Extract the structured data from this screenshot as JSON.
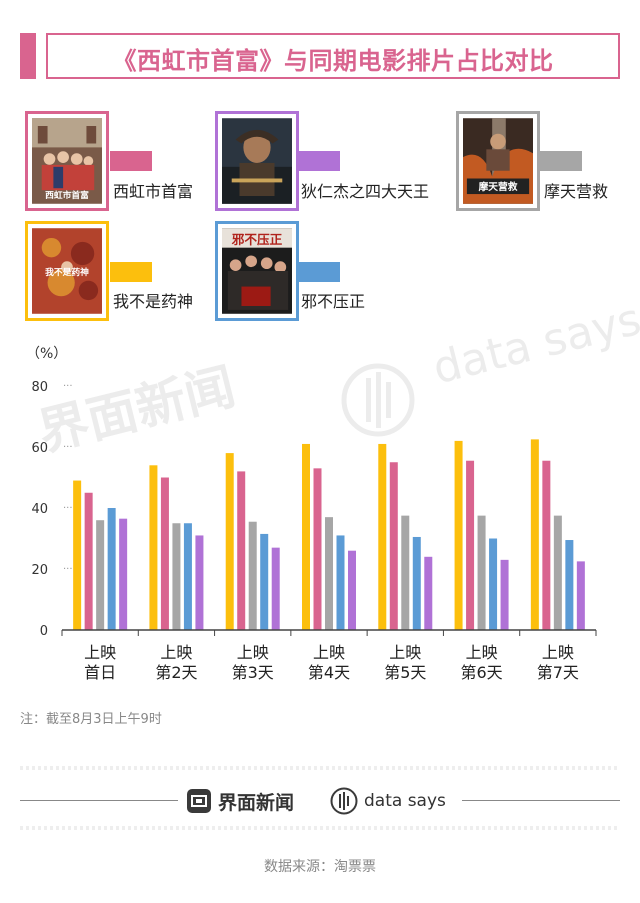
{
  "title": "《西虹市首富》与同期电影排片占比对比",
  "legend": [
    {
      "name": "西虹市首富",
      "color": "#d9648f",
      "poster_label": "西虹市首富"
    },
    {
      "name": "狄仁杰之四大天王",
      "color": "#b072d6",
      "poster_label": ""
    },
    {
      "name": "摩天营救",
      "color": "#a6a6a6",
      "poster_label": "摩天营救"
    },
    {
      "name": "我不是药神",
      "color": "#fcbf0d",
      "poster_label": "我不是药神"
    },
    {
      "name": "邪不压正",
      "color": "#5b9bd5",
      "poster_label": "邪不压正"
    }
  ],
  "chart_data": {
    "type": "bar",
    "ylabel": "（%）",
    "ylim": [
      0,
      80
    ],
    "yticks": [
      0,
      20,
      40,
      60,
      80
    ],
    "categories": [
      [
        "上映",
        "首日"
      ],
      [
        "上映",
        "第2天"
      ],
      [
        "上映",
        "第3天"
      ],
      [
        "上映",
        "第4天"
      ],
      [
        "上映",
        "第5天"
      ],
      [
        "上映",
        "第6天"
      ],
      [
        "上映",
        "第7天"
      ]
    ],
    "series": [
      {
        "name": "我不是药神",
        "color": "#fcbf0d",
        "values": [
          49,
          54,
          58,
          61,
          61,
          62,
          62.5
        ]
      },
      {
        "name": "西虹市首富",
        "color": "#d9648f",
        "values": [
          45,
          50,
          52,
          53,
          55,
          55.5,
          55.5
        ]
      },
      {
        "name": "摩天营救",
        "color": "#a6a6a6",
        "values": [
          36,
          35,
          35.5,
          37,
          37.5,
          37.5,
          37.5
        ]
      },
      {
        "name": "邪不压正",
        "color": "#5b9bd5",
        "values": [
          40,
          35,
          31.5,
          31,
          30.5,
          30,
          29.5
        ]
      },
      {
        "name": "狄仁杰之四大天王",
        "color": "#b072d6",
        "values": [
          36.5,
          31,
          27,
          26,
          24,
          23,
          22.5
        ]
      }
    ]
  },
  "watermark": {
    "cn": "界面新闻",
    "en": "data says"
  },
  "note": "注：截至8月3日上午9时",
  "footer": {
    "brand_cn": "界面新闻",
    "brand_en": "data says"
  },
  "source": "数据来源：淘票票"
}
